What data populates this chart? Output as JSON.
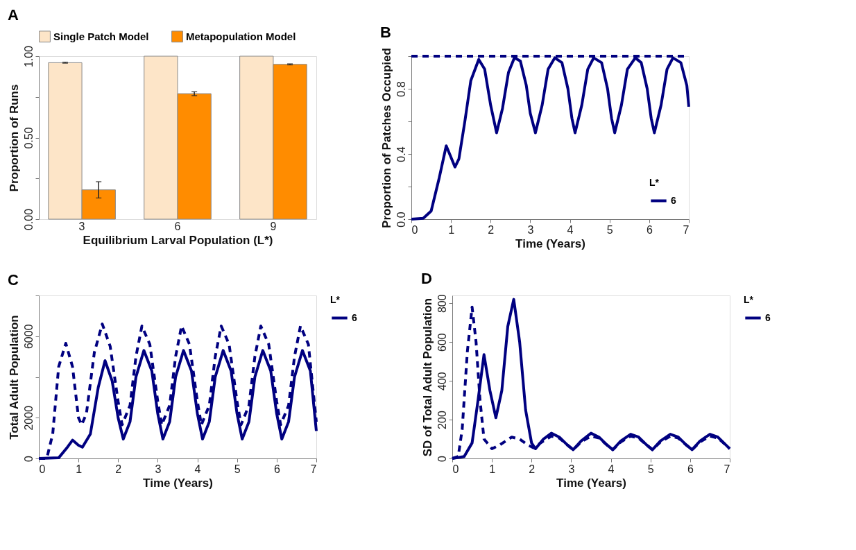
{
  "chart_data": [
    {
      "type": "bar",
      "title": "A",
      "xlabel": "Equilibrium Larval Population (L*)",
      "ylabel": "Proportion of Runs",
      "categories": [
        "3",
        "6",
        "9"
      ],
      "legend": "top",
      "grid": false,
      "series": [
        {
          "name": "Single Patch Model",
          "color": "#fde5c8",
          "values": [
            0.96,
            1.0,
            1.0
          ],
          "errors": [
            0.003,
            null,
            null
          ]
        },
        {
          "name": "Metapopulation Model",
          "color": "#ff8c00",
          "values": [
            0.18,
            0.77,
            0.95
          ],
          "errors": [
            0.05,
            0.012,
            0.003
          ]
        }
      ],
      "ylim": [
        0,
        1
      ],
      "yticks": [
        {
          "value": 0,
          "label": "0.00"
        },
        {
          "value": 0.25,
          "label": null
        },
        {
          "value": 0.5,
          "label": "0.50"
        },
        {
          "value": 0.75,
          "label": null
        },
        {
          "value": 1,
          "label": "1.00"
        }
      ]
    },
    {
      "type": "line",
      "title": "B",
      "xlabel": "Time (Years)",
      "ylabel": "Proportion of Patches Occupied",
      "legend_title": "L*",
      "legend": "bottom right",
      "grid": false,
      "xlim": [
        0,
        7
      ],
      "xticks": [
        0,
        1,
        2,
        3,
        4,
        5,
        6,
        7
      ],
      "ylim": [
        0,
        1
      ],
      "yticks": [
        {
          "value": 0,
          "label": "0.0"
        },
        {
          "value": 0.2,
          "label": null
        },
        {
          "value": 0.4,
          "label": "0.4"
        },
        {
          "value": 0.6,
          "label": null
        },
        {
          "value": 0.8,
          "label": "0.8"
        },
        {
          "value": 1,
          "label": null
        }
      ],
      "series": [
        {
          "color": "#000080",
          "line_style": "dashed",
          "x": [
            0,
            7
          ],
          "values": [
            1,
            1
          ]
        },
        {
          "name": "6",
          "color": "#000080",
          "line_style": "solid",
          "x": [
            0,
            0.3,
            0.5,
            0.7,
            0.88,
            1.0,
            1.1,
            1.2,
            1.35,
            1.5,
            1.7,
            1.85,
            2.0,
            2.15,
            2.3,
            2.45,
            2.6,
            2.75,
            2.9,
            3.0,
            3.13,
            3.3,
            3.45,
            3.62,
            3.8,
            3.95,
            4.05,
            4.13,
            4.3,
            4.45,
            4.6,
            4.8,
            4.95,
            5.05,
            5.13,
            5.3,
            5.45,
            5.65,
            5.8,
            5.95,
            6.05,
            6.13,
            6.3,
            6.45,
            6.6,
            6.8,
            6.95,
            7.0
          ],
          "values": [
            0,
            0.005,
            0.05,
            0.25,
            0.45,
            0.38,
            0.32,
            0.37,
            0.6,
            0.85,
            0.98,
            0.92,
            0.7,
            0.53,
            0.68,
            0.9,
            0.99,
            0.97,
            0.82,
            0.65,
            0.53,
            0.7,
            0.92,
            0.99,
            0.96,
            0.8,
            0.62,
            0.53,
            0.7,
            0.92,
            0.99,
            0.96,
            0.8,
            0.62,
            0.53,
            0.7,
            0.92,
            0.99,
            0.96,
            0.8,
            0.62,
            0.53,
            0.7,
            0.92,
            0.99,
            0.96,
            0.82,
            0.69
          ]
        }
      ]
    },
    {
      "type": "line",
      "title": "C",
      "xlabel": "Time (Years)",
      "ylabel": "Total Adult Population",
      "legend_title": "L*",
      "legend": "top right",
      "grid": false,
      "xlim": [
        0,
        7
      ],
      "xticks": [
        0,
        1,
        2,
        3,
        4,
        5,
        6,
        7
      ],
      "ylim": [
        0,
        8000
      ],
      "yticks": [
        0,
        2000,
        {
          "value": 4000,
          "label": null
        },
        6000,
        {
          "value": 8000,
          "label": null
        }
      ],
      "series": [
        {
          "color": "#000080",
          "line_style": "dashed",
          "x": [
            0,
            0.2,
            0.35,
            0.5,
            0.68,
            0.85,
            1.0,
            1.08,
            1.2,
            1.4,
            1.6,
            1.8,
            2.0,
            2.1,
            2.3,
            2.45,
            2.6,
            2.8,
            3.0,
            3.1,
            3.3,
            3.45,
            3.6,
            3.8,
            4.0,
            4.1,
            4.3,
            4.45,
            4.6,
            4.8,
            5.0,
            5.1,
            5.3,
            5.45,
            5.6,
            5.8,
            6.0,
            6.1,
            6.3,
            6.45,
            6.6,
            6.8,
            7.0
          ],
          "values": [
            0,
            0,
            1200,
            4500,
            5650,
            4500,
            2000,
            1650,
            2200,
            5200,
            6600,
            5500,
            2800,
            1650,
            2600,
            5000,
            6500,
            5600,
            2800,
            1650,
            2600,
            5000,
            6500,
            5600,
            2800,
            1650,
            2600,
            5000,
            6500,
            5600,
            2800,
            1650,
            2600,
            5000,
            6500,
            5600,
            2800,
            1650,
            2600,
            5000,
            6500,
            5600,
            1800
          ]
        },
        {
          "name": "6",
          "color": "#000080",
          "line_style": "solid",
          "x": [
            0,
            0.5,
            0.7,
            0.85,
            1.0,
            1.1,
            1.3,
            1.5,
            1.67,
            1.85,
            2.0,
            2.13,
            2.3,
            2.45,
            2.65,
            2.85,
            3.0,
            3.13,
            3.3,
            3.45,
            3.65,
            3.85,
            4.0,
            4.13,
            4.3,
            4.45,
            4.65,
            4.85,
            5.0,
            5.13,
            5.3,
            5.45,
            5.65,
            5.85,
            6.0,
            6.13,
            6.3,
            6.45,
            6.65,
            6.85,
            7.0
          ],
          "values": [
            0,
            30,
            500,
            900,
            650,
            550,
            1200,
            3500,
            4800,
            3800,
            2000,
            950,
            1800,
            4000,
            5300,
            4300,
            2200,
            950,
            1800,
            4000,
            5300,
            4300,
            2200,
            950,
            1800,
            4000,
            5300,
            4300,
            2200,
            950,
            1800,
            4000,
            5300,
            4300,
            2200,
            950,
            1800,
            4000,
            5300,
            4300,
            1350
          ]
        }
      ]
    },
    {
      "type": "line",
      "title": "D",
      "xlabel": "Time (Years)",
      "ylabel": "SD of Total Adult Population",
      "legend_title": "L*",
      "legend": "top right",
      "grid": false,
      "xlim": [
        0,
        7
      ],
      "xticks": [
        0,
        1,
        2,
        3,
        4,
        5,
        6,
        7
      ],
      "ylim": [
        0,
        840
      ],
      "yticks": [
        0,
        200,
        400,
        600,
        800
      ],
      "series": [
        {
          "color": "#000080",
          "line_style": "dashed",
          "x": [
            0,
            0.15,
            0.25,
            0.38,
            0.5,
            0.6,
            0.7,
            0.8,
            1.0,
            1.2,
            1.5,
            1.7,
            1.9,
            2.05,
            2.3,
            2.5,
            2.7,
            2.9,
            3.05,
            3.25,
            3.5,
            3.7,
            3.9,
            4.05,
            4.25,
            4.5,
            4.7,
            4.9,
            5.05,
            5.25,
            5.5,
            5.7,
            5.9,
            6.05,
            6.25,
            6.5,
            6.7,
            6.9,
            7.0
          ],
          "values": [
            0,
            10,
            150,
            550,
            780,
            600,
            300,
            100,
            50,
            70,
            110,
            100,
            70,
            55,
            90,
            115,
            105,
            70,
            45,
            85,
            115,
            105,
            70,
            45,
            85,
            115,
            105,
            70,
            45,
            85,
            115,
            105,
            70,
            45,
            85,
            115,
            105,
            70,
            50
          ]
        },
        {
          "name": "6",
          "color": "#000080",
          "line_style": "solid",
          "x": [
            0,
            0.3,
            0.5,
            0.65,
            0.8,
            0.95,
            1.1,
            1.25,
            1.4,
            1.55,
            1.7,
            1.85,
            2.0,
            2.1,
            2.3,
            2.5,
            2.7,
            2.9,
            3.05,
            3.25,
            3.5,
            3.7,
            3.9,
            4.05,
            4.25,
            4.5,
            4.7,
            4.9,
            5.05,
            5.25,
            5.5,
            5.7,
            5.9,
            6.05,
            6.25,
            6.5,
            6.7,
            6.9,
            7.0
          ],
          "values": [
            0,
            10,
            80,
            300,
            535,
            350,
            210,
            350,
            680,
            820,
            600,
            250,
            80,
            50,
            100,
            130,
            110,
            70,
            45,
            90,
            130,
            110,
            70,
            45,
            90,
            125,
            110,
            70,
            45,
            90,
            125,
            110,
            70,
            45,
            90,
            125,
            110,
            70,
            50
          ]
        }
      ]
    }
  ]
}
